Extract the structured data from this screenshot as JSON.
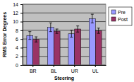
{
  "chart_data": {
    "type": "bar",
    "x_label": "Steering",
    "y_label": "RMS Error Degrees",
    "categories": [
      "BR",
      "BL",
      "UR",
      "UL"
    ],
    "series": [
      {
        "name": "Pre",
        "color": "#9999ff",
        "values": [
          6.8,
          8.7,
          7.2,
          10.7
        ],
        "errors": [
          0.9,
          1.0,
          0.8,
          1.0
        ]
      },
      {
        "name": "Post",
        "color": "#993366",
        "values": [
          5.9,
          7.8,
          8.3,
          7.9
        ],
        "errors": [
          0.6,
          0.5,
          0.7,
          0.6
        ]
      }
    ],
    "ylim": [
      0,
      14
    ],
    "yticks": [
      0,
      2,
      4,
      6,
      8,
      10,
      12,
      14
    ],
    "grid": true,
    "legend": "right"
  }
}
